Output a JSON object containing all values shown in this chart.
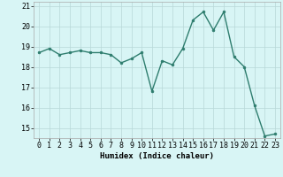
{
  "x": [
    0,
    1,
    2,
    3,
    4,
    5,
    6,
    7,
    8,
    9,
    10,
    11,
    12,
    13,
    14,
    15,
    16,
    17,
    18,
    19,
    20,
    21,
    22,
    23
  ],
  "y": [
    18.7,
    18.9,
    18.6,
    18.7,
    18.8,
    18.7,
    18.7,
    18.6,
    18.2,
    18.4,
    18.7,
    16.8,
    18.3,
    18.1,
    18.9,
    20.3,
    20.7,
    19.8,
    20.7,
    18.5,
    18.0,
    16.1,
    14.6,
    14.7
  ],
  "line_color": "#2e7d6e",
  "marker": "o",
  "markersize": 2.0,
  "linewidth": 1.0,
  "bg_color": "#d8f5f5",
  "grid_color": "#b8d8d8",
  "xlabel": "Humidex (Indice chaleur)",
  "ylim": [
    14.5,
    21.2
  ],
  "xlim": [
    -0.5,
    23.5
  ],
  "yticks": [
    15,
    16,
    17,
    18,
    19,
    20,
    21
  ],
  "xticks": [
    0,
    1,
    2,
    3,
    4,
    5,
    6,
    7,
    8,
    9,
    10,
    11,
    12,
    13,
    14,
    15,
    16,
    17,
    18,
    19,
    20,
    21,
    22,
    23
  ],
  "xlabel_fontsize": 6.5,
  "tick_fontsize": 6.0
}
